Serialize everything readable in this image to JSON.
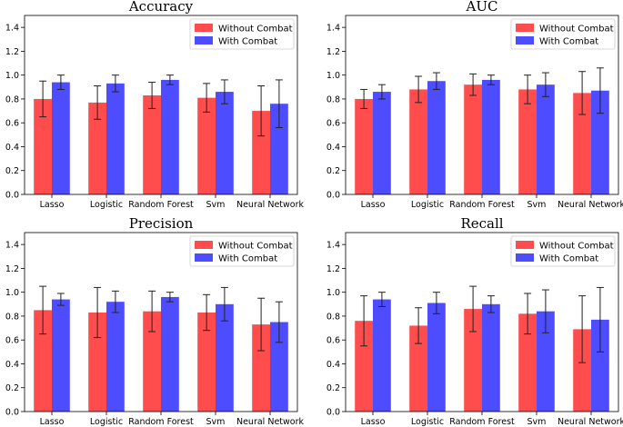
{
  "chart_data": [
    {
      "type": "bar",
      "title": "Accuracy",
      "categories": [
        "Lasso",
        "Logistic",
        "Random Forest",
        "Svm",
        "Neural Network"
      ],
      "series": [
        {
          "name": "Without Combat",
          "color": "#ff4d4d",
          "values": [
            0.8,
            0.77,
            0.83,
            0.81,
            0.7
          ],
          "errors": [
            0.15,
            0.14,
            0.11,
            0.12,
            0.21
          ]
        },
        {
          "name": "With Combat",
          "color": "#4d4dff",
          "values": [
            0.94,
            0.93,
            0.96,
            0.86,
            0.76
          ],
          "errors": [
            0.06,
            0.07,
            0.04,
            0.1,
            0.2
          ]
        }
      ],
      "ylim": [
        0,
        1.5
      ],
      "yticks": [
        "0.0",
        "0.2",
        "0.4",
        "0.6",
        "0.8",
        "1.0",
        "1.2",
        "1.4"
      ],
      "legend": "top-right"
    },
    {
      "type": "bar",
      "title": "AUC",
      "categories": [
        "Lasso",
        "Logistic",
        "Random Forest",
        "Svm",
        "Neural Network"
      ],
      "series": [
        {
          "name": "Without Combat",
          "color": "#ff4d4d",
          "values": [
            0.8,
            0.88,
            0.92,
            0.88,
            0.85
          ],
          "errors": [
            0.08,
            0.11,
            0.09,
            0.12,
            0.18
          ]
        },
        {
          "name": "With Combat",
          "color": "#4d4dff",
          "values": [
            0.86,
            0.95,
            0.96,
            0.92,
            0.87
          ],
          "errors": [
            0.06,
            0.07,
            0.04,
            0.1,
            0.19
          ]
        }
      ],
      "ylim": [
        0,
        1.5
      ],
      "yticks": [
        "0.0",
        "0.2",
        "0.4",
        "0.6",
        "0.8",
        "1.0",
        "1.2",
        "1.4"
      ],
      "legend": "top-right"
    },
    {
      "type": "bar",
      "title": "Precision",
      "categories": [
        "Lasso",
        "Logistic",
        "Random Forest",
        "Svm",
        "Neural Network"
      ],
      "series": [
        {
          "name": "Without Combat",
          "color": "#ff4d4d",
          "values": [
            0.85,
            0.83,
            0.84,
            0.83,
            0.73
          ],
          "errors": [
            0.2,
            0.21,
            0.17,
            0.15,
            0.22
          ]
        },
        {
          "name": "With Combat",
          "color": "#4d4dff",
          "values": [
            0.94,
            0.92,
            0.96,
            0.9,
            0.75
          ],
          "errors": [
            0.05,
            0.09,
            0.04,
            0.14,
            0.17
          ]
        }
      ],
      "ylim": [
        0,
        1.5
      ],
      "yticks": [
        "0.0",
        "0.2",
        "0.4",
        "0.6",
        "0.8",
        "1.0",
        "1.2",
        "1.4"
      ],
      "legend": "top-right"
    },
    {
      "type": "bar",
      "title": "Recall",
      "categories": [
        "Lasso",
        "Logistic",
        "Random Forest",
        "Svm",
        "Neural Network"
      ],
      "series": [
        {
          "name": "Without Combat",
          "color": "#ff4d4d",
          "values": [
            0.76,
            0.72,
            0.86,
            0.82,
            0.69
          ],
          "errors": [
            0.21,
            0.15,
            0.19,
            0.17,
            0.28
          ]
        },
        {
          "name": "With Combat",
          "color": "#4d4dff",
          "values": [
            0.94,
            0.91,
            0.9,
            0.84,
            0.77
          ],
          "errors": [
            0.06,
            0.09,
            0.07,
            0.18,
            0.27
          ]
        }
      ],
      "ylim": [
        0,
        1.5
      ],
      "yticks": [
        "0.0",
        "0.2",
        "0.4",
        "0.6",
        "0.8",
        "1.0",
        "1.2",
        "1.4"
      ],
      "legend": "top-right"
    }
  ]
}
